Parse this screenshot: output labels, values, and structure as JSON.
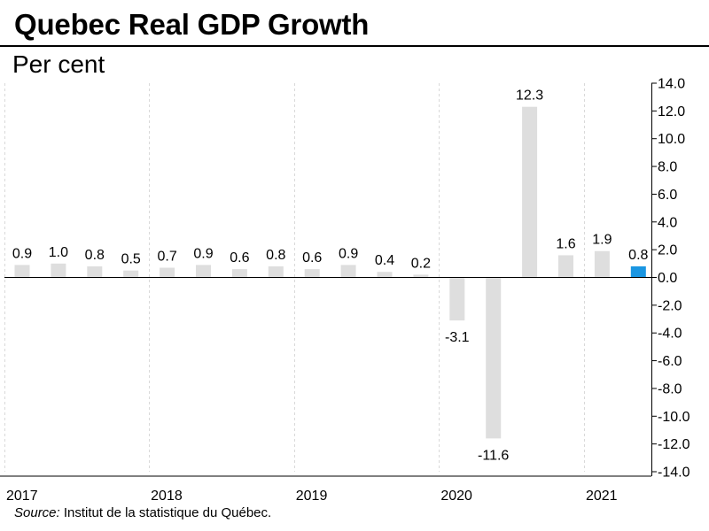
{
  "title": "Quebec Real GDP Growth",
  "subtitle": "Per cent",
  "source": {
    "prefix": "Source:",
    "text": "Institut de la statistique du Québec."
  },
  "colors": {
    "bar": "#dedede",
    "highlight": "#1a96e2",
    "grid": "#d9d9d9",
    "axis": "#000000"
  },
  "chart_data": {
    "type": "bar",
    "title": "Quebec Real GDP Growth",
    "ylabel": "Per cent",
    "xlabel": "",
    "ylim": [
      -14,
      14
    ],
    "y_ticks": [
      14,
      12,
      10,
      8,
      6,
      4,
      2,
      0,
      -2,
      -4,
      -6,
      -8,
      -10,
      -12,
      -14
    ],
    "y_tick_labels": [
      "14.0",
      "12.0",
      "10.0",
      "8.0",
      "6.0",
      "4.0",
      "2.0",
      "0.0",
      "-2.0",
      "-4.0",
      "-6.0",
      "-8.0",
      "-10.0",
      "-12.0",
      "-14.0"
    ],
    "y_axis_side": "right",
    "years": [
      "2017",
      "2018",
      "2019",
      "2020",
      "2021"
    ],
    "categories": [
      "2017 Q1",
      "2017 Q2",
      "2017 Q3",
      "2017 Q4",
      "2018 Q1",
      "2018 Q2",
      "2018 Q3",
      "2018 Q4",
      "2019 Q1",
      "2019 Q2",
      "2019 Q3",
      "2019 Q4",
      "2020 Q1",
      "2020 Q2",
      "2020 Q3",
      "2020 Q4",
      "2021 Q1",
      "2021 Q2"
    ],
    "values": [
      0.9,
      1.0,
      0.8,
      0.5,
      0.7,
      0.9,
      0.6,
      0.8,
      0.6,
      0.9,
      0.4,
      0.2,
      -3.1,
      -11.6,
      12.3,
      1.6,
      1.9,
      0.8
    ],
    "data_labels": [
      "0.9",
      "1.0",
      "0.8",
      "0.5",
      "0.7",
      "0.9",
      "0.6",
      "0.8",
      "0.6",
      "0.9",
      "0.4",
      "0.2",
      "-3.1",
      "-11.6",
      "12.3",
      "1.6",
      "1.9",
      "0.8"
    ],
    "highlight_index": 17,
    "grid": "vertical dashed year separators",
    "legend": "none"
  }
}
